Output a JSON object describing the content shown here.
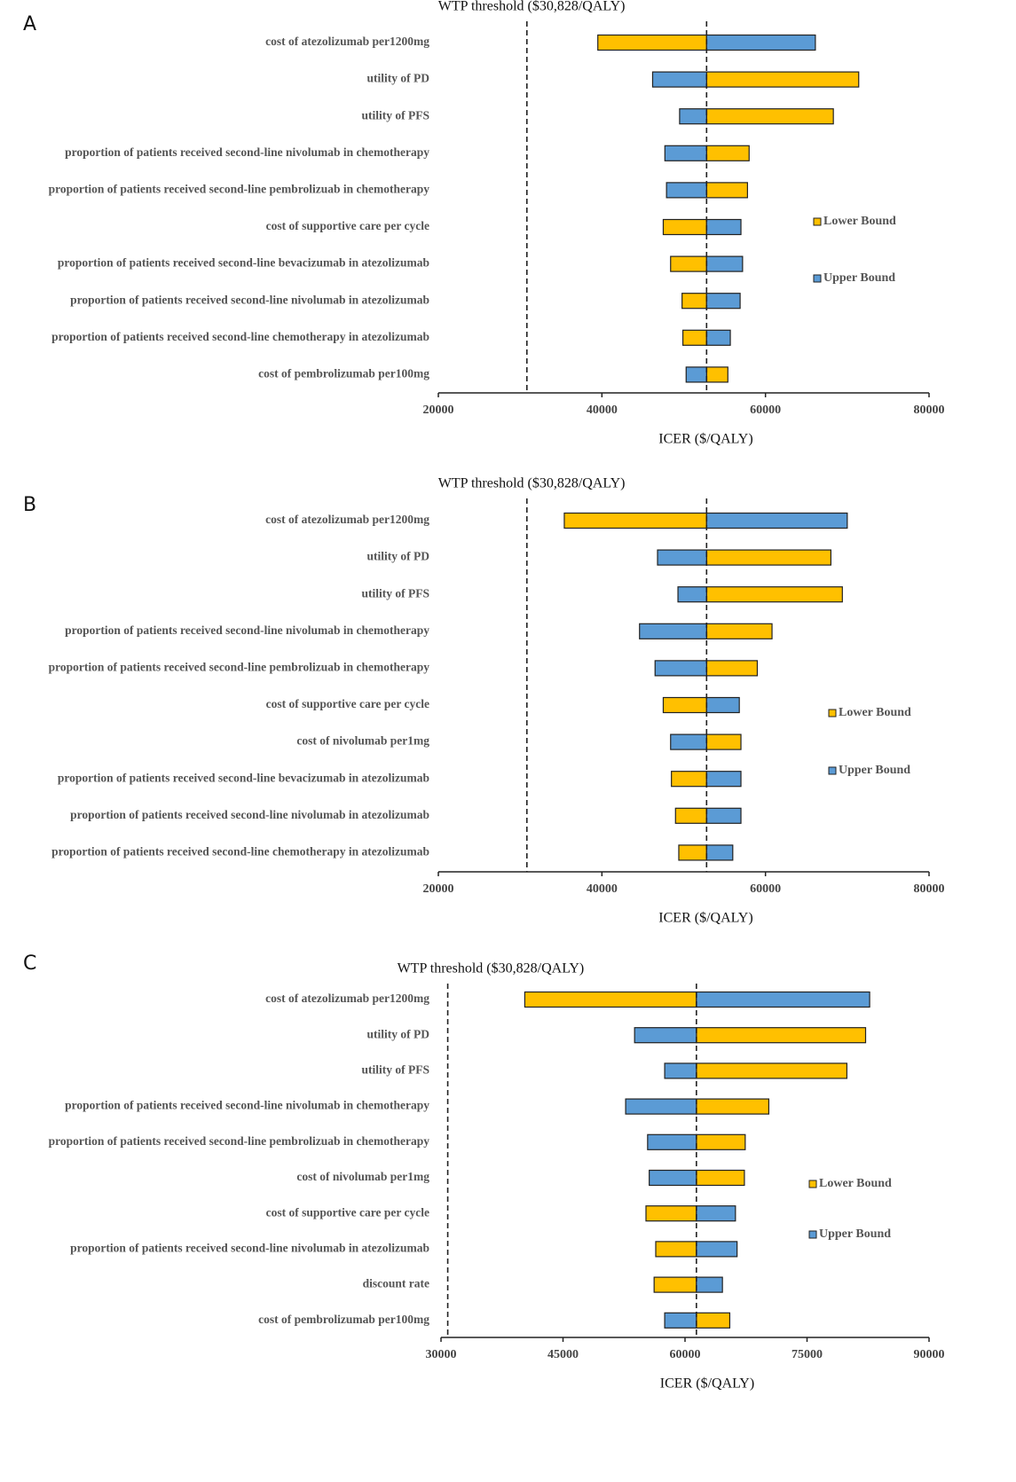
{
  "chart_data": [
    {
      "type": "tornado",
      "panel_label": "A",
      "threshold_label": "WTP threshold ($30,828/QALY)",
      "threshold": 30828,
      "reference_value": 52800,
      "categories": [
        "cost of atezolizumab per1200mg",
        "utility of PD",
        "utility of PFS",
        "proportion of patients received second-line nivolumab in chemotherapy",
        "proportion of patients received second-line pembrolizuab in chemotherapy",
        "cost of supportive care per cycle",
        "proportion of patients received second-line bevacizumab in atezolizumab",
        "proportion of patients received second-line nivolumab in atezolizumab",
        "proportion of patients received second-line chemotherapy in atezolizumab",
        "cost of pembrolizumab per100mg"
      ],
      "series": [
        {
          "name": "Lower Bound",
          "color": "#FFC000",
          "values": [
            39500,
            71400,
            68300,
            58000,
            57800,
            47500,
            48400,
            49800,
            49900,
            55400
          ]
        },
        {
          "name": "Upper Bound",
          "color": "#5B9BD5",
          "values": [
            66100,
            46200,
            49500,
            47700,
            47900,
            57000,
            57200,
            56900,
            55700,
            50300
          ]
        }
      ],
      "xlabel": "ICER ($/QALY)",
      "xlim": [
        20000,
        80000
      ],
      "xticks": [
        20000,
        40000,
        60000,
        80000
      ],
      "legend": "right"
    },
    {
      "type": "tornado",
      "panel_label": "B",
      "threshold_label": "WTP threshold ($30,828/QALY)",
      "threshold": 30828,
      "reference_value": 52800,
      "categories": [
        "cost of atezolizumab per1200mg",
        "utility of PD",
        "utility of PFS",
        "proportion of patients received second-line nivolumab in chemotherapy",
        "proportion of patients received second-line pembrolizuab in chemotherapy",
        "cost of supportive care per cycle",
        "cost of nivolumab per1mg",
        "proportion of patients received second-line bevacizumab in atezolizumab",
        "proportion of patients received second-line nivolumab in atezolizumab",
        "proportion of patients received second-line chemotherapy in atezolizumab"
      ],
      "series": [
        {
          "name": "Lower Bound",
          "color": "#FFC000",
          "values": [
            35400,
            68000,
            69400,
            60800,
            59000,
            47500,
            57000,
            48500,
            49000,
            49400
          ]
        },
        {
          "name": "Upper Bound",
          "color": "#5B9BD5",
          "values": [
            70000,
            46800,
            49300,
            44600,
            46500,
            56800,
            48400,
            57000,
            57000,
            56000
          ]
        }
      ],
      "xlabel": "ICER ($/QALY)",
      "xlim": [
        20000,
        80000
      ],
      "xticks": [
        20000,
        40000,
        60000,
        80000
      ],
      "legend": "right"
    },
    {
      "type": "tornado",
      "panel_label": "C",
      "threshold_label": "WTP threshold ($30,828/QALY)",
      "threshold": 30828,
      "reference_value": 61400,
      "categories": [
        "cost of atezolizumab per1200mg",
        "utility of PD",
        "utility of PFS",
        "proportion of patients received second-line nivolumab in chemotherapy",
        "proportion of patients received second-line pembrolizuab in chemotherapy",
        "cost of nivolumab per1mg",
        "cost of supportive care per cycle",
        "proportion of patients received second-line nivolumab in atezolizumab",
        "discount rate",
        "cost of pembrolizumab per100mg"
      ],
      "series": [
        {
          "name": "Lower Bound",
          "color": "#FFC000",
          "values": [
            40300,
            82200,
            79900,
            70300,
            67400,
            67300,
            55200,
            56400,
            56200,
            65500
          ]
        },
        {
          "name": "Upper Bound",
          "color": "#5B9BD5",
          "values": [
            82700,
            53800,
            57500,
            52700,
            55400,
            55600,
            66200,
            66400,
            64600,
            57500
          ]
        }
      ],
      "xlabel": "ICER ($/QALY)",
      "xlim": [
        30000,
        90000
      ],
      "xticks": [
        30000,
        45000,
        60000,
        75000,
        90000
      ],
      "legend": "right"
    }
  ]
}
